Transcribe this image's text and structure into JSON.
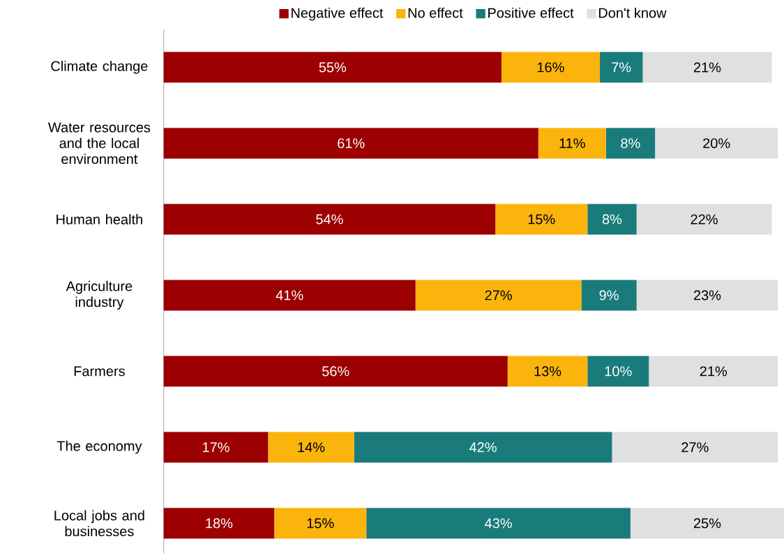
{
  "chart_data": {
    "type": "bar",
    "orientation": "horizontal",
    "stacked": true,
    "legend": "top",
    "categories": [
      "Climate change",
      "Water resources and the local environment",
      "Human health",
      "Agriculture industry",
      "Farmers",
      "The economy",
      "Local jobs and businesses"
    ],
    "series": [
      {
        "name": "Negative effect",
        "color": "#9c0000",
        "values": [
          55,
          61,
          54,
          41,
          56,
          17,
          18
        ],
        "value_labels": [
          "55%",
          "61%",
          "54%",
          "41%",
          "56%",
          "17%",
          "18%"
        ]
      },
      {
        "name": "No effect",
        "color": "#fbb40c",
        "values": [
          16,
          11,
          15,
          27,
          13,
          14,
          15
        ],
        "value_labels": [
          "16%",
          "11%",
          "15%",
          "27%",
          "13%",
          "14%",
          "15%"
        ]
      },
      {
        "name": "Positive effect",
        "color": "#1a7b7b",
        "values": [
          7,
          8,
          8,
          9,
          10,
          42,
          43
        ],
        "value_labels": [
          "7%",
          "8%",
          "8%",
          "9%",
          "10%",
          "42%",
          "43%"
        ]
      },
      {
        "name": "Don't know",
        "color": "#e0e0e0",
        "values": [
          21,
          20,
          22,
          23,
          21,
          27,
          25
        ],
        "value_labels": [
          "21%",
          "20%",
          "22%",
          "23%",
          "21%",
          "27%",
          "25%"
        ]
      }
    ]
  }
}
